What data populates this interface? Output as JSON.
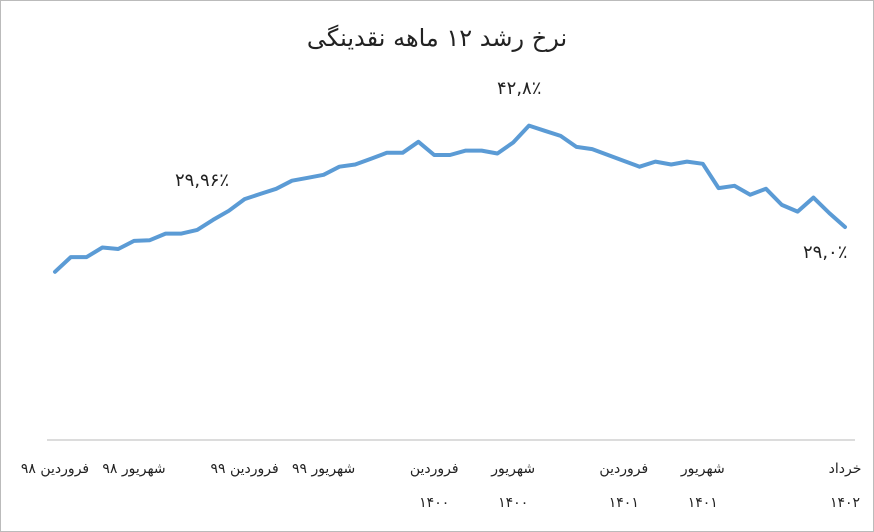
{
  "chart_data": {
    "type": "line",
    "title": "نرخ رشد ۱۲ ماهه نقدینگی",
    "annotations": [
      "۲۹,۹۶٪",
      "۴۲,۸٪",
      "۲۹,۰٪"
    ],
    "categories": [
      "فروردین ۹۸",
      null,
      null,
      null,
      null,
      "شهریور ۹۸",
      null,
      null,
      null,
      null,
      null,
      null,
      "فروردین ۹۹",
      null,
      null,
      null,
      null,
      "شهریور ۹۹",
      null,
      null,
      null,
      null,
      null,
      null,
      "فروردین\n۱۴۰۰",
      null,
      null,
      null,
      null,
      "شهریور\n۱۴۰۰",
      null,
      null,
      null,
      null,
      null,
      null,
      "فروردین\n۱۴۰۱",
      null,
      null,
      null,
      null,
      "شهریور\n۱۴۰۱",
      null,
      null,
      null,
      null,
      null,
      null,
      null,
      null,
      "خرداد\n۱۴۰۲"
    ],
    "values": [
      22.9,
      24.9,
      24.9,
      26.2,
      26.0,
      27.1,
      27.2,
      28.1,
      28.1,
      28.6,
      29.96,
      31.2,
      32.8,
      33.5,
      34.2,
      35.3,
      35.7,
      36.1,
      37.2,
      37.5,
      38.3,
      39.1,
      39.1,
      40.6,
      38.8,
      38.8,
      39.4,
      39.4,
      39.0,
      40.5,
      42.8,
      42.1,
      41.4,
      39.9,
      39.6,
      38.8,
      38.0,
      37.2,
      37.9,
      37.5,
      37.9,
      37.6,
      34.3,
      34.6,
      33.4,
      34.2,
      32.0,
      31.1,
      33.0,
      30.9,
      29.0
    ],
    "color": "#5b9bd5",
    "ylim": [
      0,
      55
    ]
  }
}
